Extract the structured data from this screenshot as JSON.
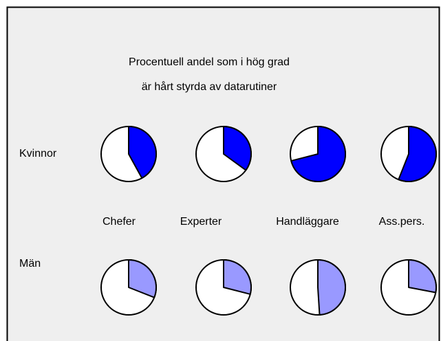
{
  "chart_data": {
    "type": "pie",
    "title": [
      "Procentuell andel som i hög grad",
      "är hårt styrda av datarutiner"
    ],
    "categories": [
      "Chefer",
      "Experter",
      "Handläggare",
      "Ass.pers."
    ],
    "series": [
      {
        "name": "Kvinnor",
        "color": "#0000ff",
        "values": [
          42,
          35,
          71,
          56
        ]
      },
      {
        "name": "Män",
        "color": "#9999ff",
        "values": [
          31,
          29,
          49,
          28
        ]
      }
    ]
  }
}
